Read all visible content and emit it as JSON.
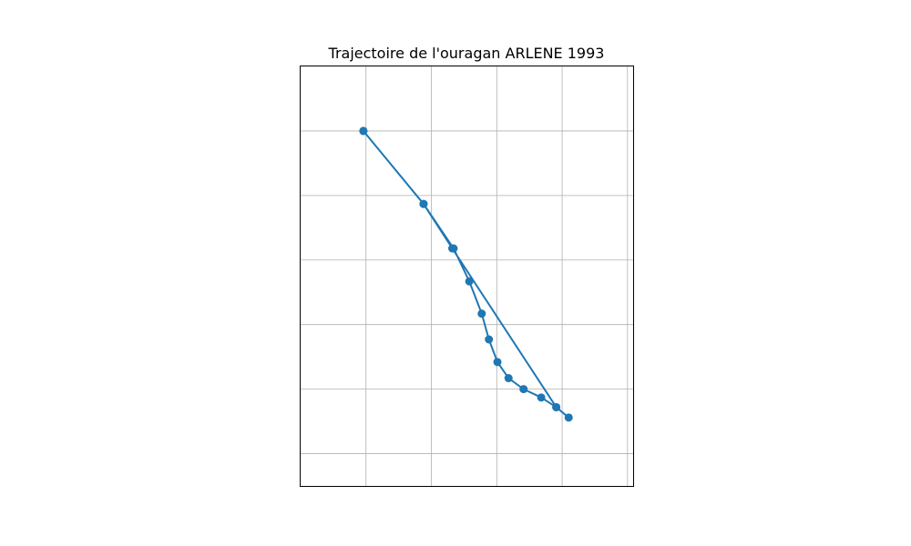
{
  "chart_data": {
    "type": "line",
    "title": "Trajectoire de l'ouragan ARLENE 1993",
    "xlabel": "",
    "ylabel": "",
    "xlim": [
      -101.6,
      -96.5
    ],
    "ylim": [
      13.5,
      20.0
    ],
    "x_gridlines": [
      -100.6,
      -99.6,
      -98.6,
      -97.6,
      -96.6
    ],
    "y_gridlines": [
      14.0,
      15.0,
      16.0,
      17.0,
      18.0,
      19.0
    ],
    "grid": true,
    "marker": "circle",
    "color": "#1f77b4",
    "series": [
      {
        "name": "",
        "x": [
          -100.64,
          -99.72,
          -99.26,
          -99.02,
          -98.83,
          -98.72,
          -98.59,
          -98.42,
          -98.19,
          -97.92,
          -97.69,
          -97.5,
          -97.69,
          -99.28,
          -99.72,
          -100.64
        ],
        "y": [
          19.0,
          17.87,
          17.18,
          16.67,
          16.17,
          15.77,
          15.42,
          15.17,
          15.0,
          14.87,
          14.72,
          14.56,
          14.72,
          17.18,
          17.87,
          19.0
        ]
      }
    ]
  }
}
